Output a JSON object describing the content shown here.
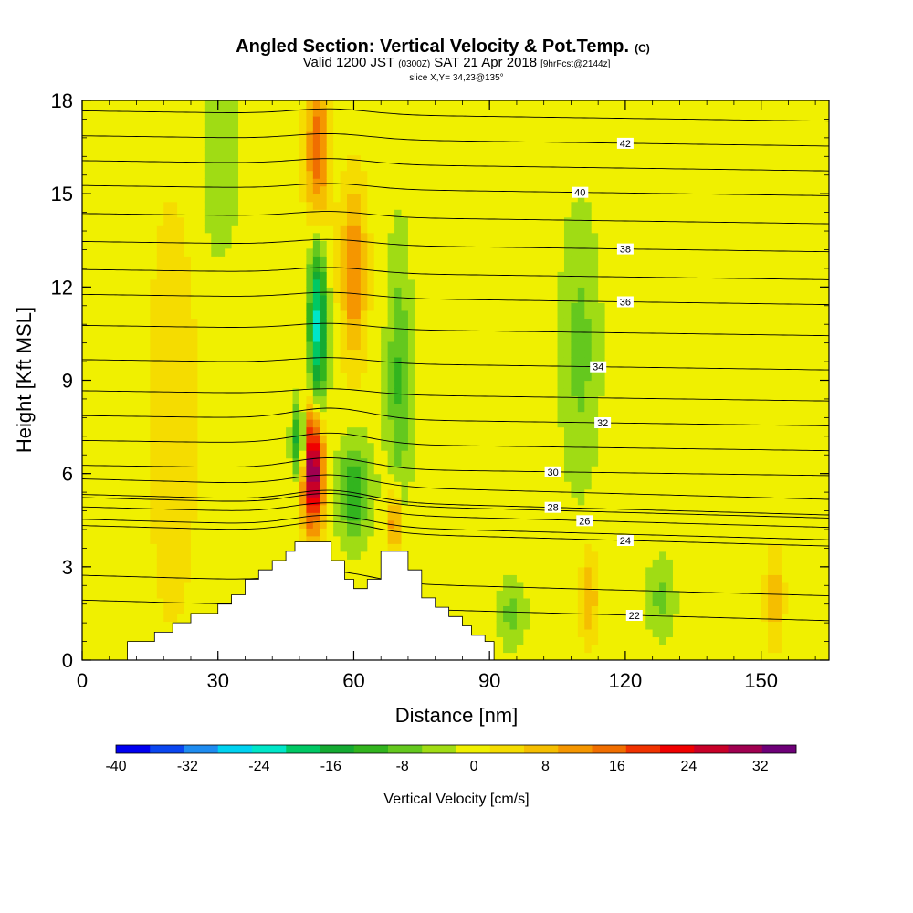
{
  "chart_data": {
    "type": "heatmap",
    "title": "Angled Section: Vertical Velocity & Pot.Temp.",
    "title_mark": "(C)",
    "subtitle_parts": [
      "Valid 1200 JST",
      "(0300Z)",
      "SAT 21 Apr 2018",
      "[9hrFcst@2144z]"
    ],
    "slice_note": "slice X,Y= 34,23@135°",
    "xlabel": "Distance [nm]",
    "ylabel": "Height [Kft MSL]",
    "xlim": [
      0,
      165
    ],
    "ylim": [
      0,
      18
    ],
    "xticks": [
      0,
      30,
      60,
      90,
      120,
      150
    ],
    "yticks": [
      0,
      3,
      6,
      9,
      12,
      15,
      18
    ],
    "colorbar": {
      "label": "Vertical Velocity [cm/s]",
      "ticks": [
        -40,
        -32,
        -24,
        -16,
        -8,
        0,
        8,
        16,
        24,
        32
      ],
      "range": [
        -40,
        36
      ],
      "step": 4,
      "colors": [
        "#0000f0",
        "#0a46f0",
        "#1e8cf0",
        "#00d2f0",
        "#00e6c8",
        "#00c864",
        "#14aa32",
        "#32b41e",
        "#64c81e",
        "#a0dc14",
        "#f0f000",
        "#f5dc00",
        "#f5be00",
        "#f59600",
        "#f06e00",
        "#f03200",
        "#f00000",
        "#c80028",
        "#a00050",
        "#6e0078"
      ]
    },
    "terrain": [
      [
        0,
        0
      ],
      [
        10,
        0
      ],
      [
        10,
        0.6
      ],
      [
        16,
        0.6
      ],
      [
        16,
        0.9
      ],
      [
        20,
        0.9
      ],
      [
        20,
        1.2
      ],
      [
        24,
        1.2
      ],
      [
        24,
        1.5
      ],
      [
        30,
        1.5
      ],
      [
        30,
        1.8
      ],
      [
        33,
        1.8
      ],
      [
        33,
        2.1
      ],
      [
        36,
        2.1
      ],
      [
        36,
        2.6
      ],
      [
        39,
        2.6
      ],
      [
        39,
        2.9
      ],
      [
        42,
        2.9
      ],
      [
        42,
        3.2
      ],
      [
        45,
        3.2
      ],
      [
        45,
        3.5
      ],
      [
        47,
        3.5
      ],
      [
        47,
        3.8
      ],
      [
        55,
        3.8
      ],
      [
        55,
        3.2
      ],
      [
        58,
        3.2
      ],
      [
        58,
        2.6
      ],
      [
        60,
        2.6
      ],
      [
        60,
        2.3
      ],
      [
        63,
        2.3
      ],
      [
        63,
        2.6
      ],
      [
        66,
        2.6
      ],
      [
        66,
        3.5
      ],
      [
        72,
        3.5
      ],
      [
        72,
        2.9
      ],
      [
        75,
        2.9
      ],
      [
        75,
        2.0
      ],
      [
        78,
        2.0
      ],
      [
        78,
        1.7
      ],
      [
        81,
        1.7
      ],
      [
        81,
        1.4
      ],
      [
        84,
        1.4
      ],
      [
        84,
        1.1
      ],
      [
        86,
        1.1
      ],
      [
        86,
        0.8
      ],
      [
        89,
        0.8
      ],
      [
        89,
        0.6
      ],
      [
        91,
        0.6
      ],
      [
        91,
        0
      ],
      [
        165,
        0
      ]
    ],
    "velocity_features": [
      {
        "x": 51,
        "z": 6.2,
        "sx": 2.5,
        "sz": 2.0,
        "w": 38
      },
      {
        "x": 48,
        "z": 7.0,
        "sx": 1.5,
        "sz": 1.2,
        "w": -22
      },
      {
        "x": 52,
        "z": 16.0,
        "sx": 2.5,
        "sz": 3.0,
        "w": 20
      },
      {
        "x": 60,
        "z": 12.5,
        "sx": 3.0,
        "sz": 3.0,
        "w": 14
      },
      {
        "x": 52,
        "z": 11.0,
        "sx": 2.0,
        "sz": 3.5,
        "w": -24
      },
      {
        "x": 60,
        "z": 5.5,
        "sx": 3.5,
        "sz": 1.5,
        "w": -14
      },
      {
        "x": 70,
        "z": 9.0,
        "sx": 2.5,
        "sz": 4.0,
        "w": -10
      },
      {
        "x": 69,
        "z": 4.5,
        "sx": 1.5,
        "sz": 1.0,
        "w": 16
      },
      {
        "x": 112,
        "z": 2.0,
        "sx": 2.0,
        "sz": 1.5,
        "w": 10
      },
      {
        "x": 153,
        "z": 2.0,
        "sx": 2.0,
        "sz": 1.5,
        "w": 10
      },
      {
        "x": 110,
        "z": 10.0,
        "sx": 4.0,
        "sz": 4.0,
        "w": -7
      },
      {
        "x": 30,
        "z": 16.0,
        "sx": 4.0,
        "sz": 3.0,
        "w": -6
      },
      {
        "x": 128,
        "z": 2.0,
        "sx": 3.0,
        "sz": 1.2,
        "w": -7
      },
      {
        "x": 95,
        "z": 1.5,
        "sx": 3.0,
        "sz": 1.0,
        "w": -7
      },
      {
        "x": 20,
        "z": 8.0,
        "sx": 8.0,
        "sz": 10.0,
        "w": 4
      },
      {
        "x": 140,
        "z": 9.0,
        "sx": 10.0,
        "sz": 8.0,
        "w": 2
      }
    ],
    "isentropes": [
      {
        "value": 22,
        "label": true,
        "label_x": 122,
        "level": 1.6
      },
      {
        "value": 23,
        "label": false,
        "level": 2.4
      },
      {
        "value": 24,
        "label": true,
        "label_x": 120,
        "level": 4.0
      },
      {
        "value": 25,
        "label": false,
        "level": 4.2
      },
      {
        "value": 26,
        "label": true,
        "label_x": 111,
        "level": 4.6
      },
      {
        "value": 27,
        "label": false,
        "level": 4.9
      },
      {
        "value": 28,
        "label": true,
        "label_x": 104,
        "level": 5.0
      },
      {
        "value": 29,
        "label": false,
        "level": 5.5
      },
      {
        "value": 30,
        "label": true,
        "label_x": 104,
        "level": 6.1
      },
      {
        "value": 31,
        "label": false,
        "level": 6.9
      },
      {
        "value": 32,
        "label": true,
        "label_x": 115,
        "level": 7.7
      },
      {
        "value": 33,
        "label": false,
        "level": 8.5
      },
      {
        "value": 34,
        "label": true,
        "label_x": 114,
        "level": 9.5
      },
      {
        "value": 35,
        "label": false,
        "level": 10.6
      },
      {
        "value": 36,
        "label": true,
        "label_x": 120,
        "level": 11.6
      },
      {
        "value": 37,
        "label": false,
        "level": 12.4
      },
      {
        "value": 38,
        "label": true,
        "label_x": 120,
        "level": 13.3
      },
      {
        "value": 39,
        "label": false,
        "level": 14.2
      },
      {
        "value": 40,
        "label": true,
        "label_x": 110,
        "level": 15.1
      },
      {
        "value": 41,
        "label": false,
        "level": 15.9
      },
      {
        "value": 42,
        "label": true,
        "label_x": 120,
        "level": 16.7
      },
      {
        "value": 43,
        "label": false,
        "level": 17.5
      }
    ]
  }
}
